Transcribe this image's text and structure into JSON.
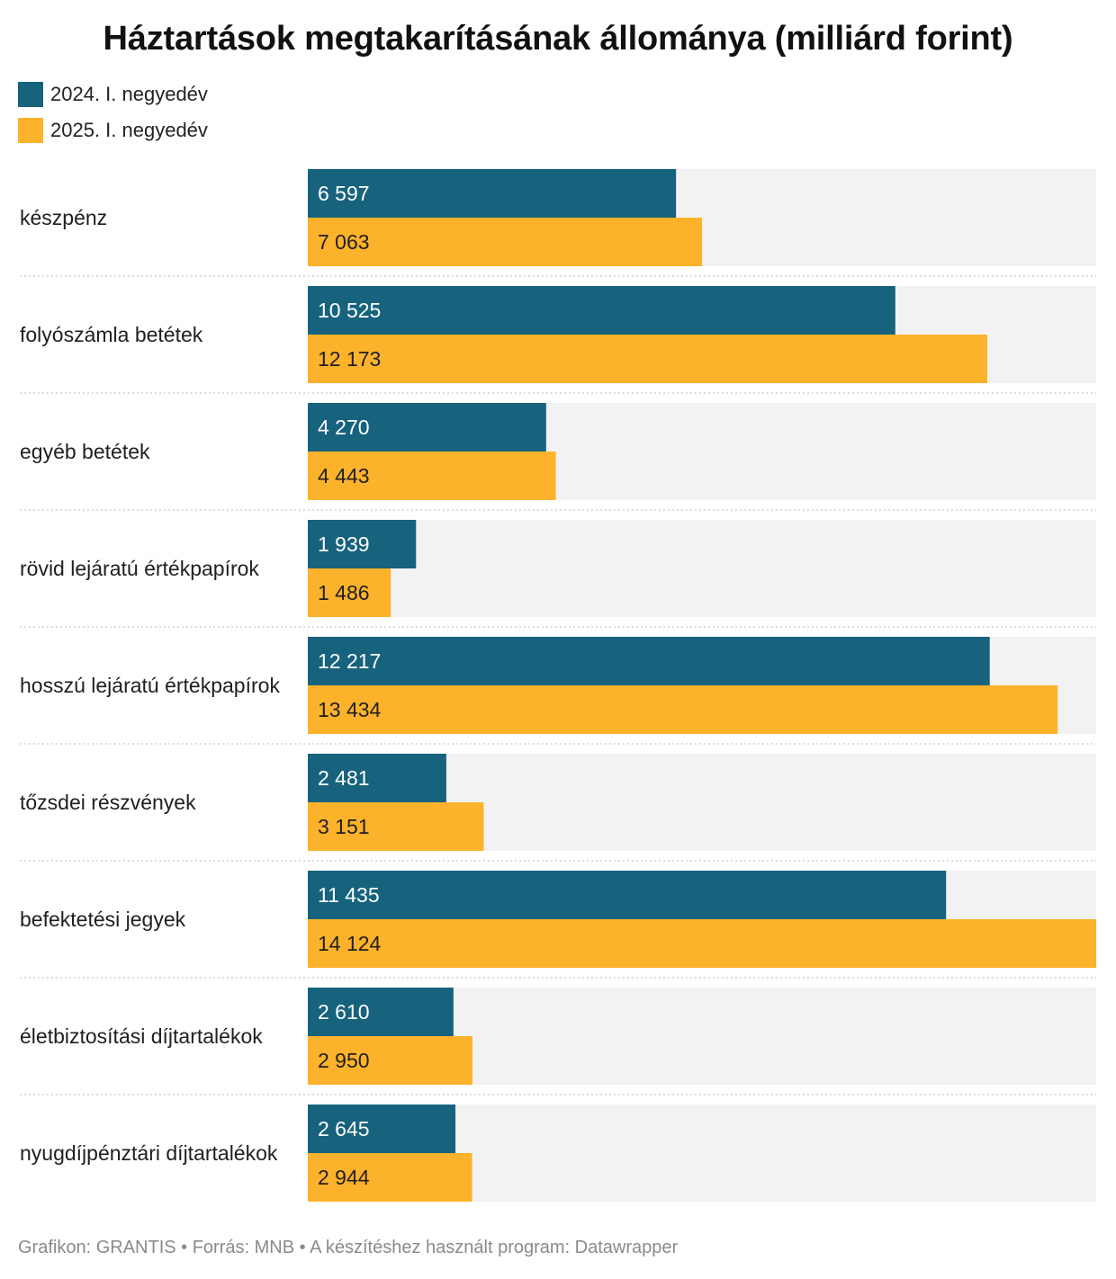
{
  "chart_data": {
    "type": "bar",
    "orientation": "horizontal",
    "title": "Háztartások megtakarításának állománya (milliárd forint)",
    "categories": [
      "készpénz",
      "folyószámla betétek",
      "egyéb betétek",
      "rövid lejáratú értékpapírok",
      "hosszú lejáratú értékpapírok",
      "tőzsdei részvények",
      "befektetési jegyek",
      "életbiztosítási díjtartalékok",
      "nyugdíjpénztári díjtartalékok"
    ],
    "series": [
      {
        "name": "2024. I. negyedév",
        "color": "#17627d",
        "label_color": "#ffffff",
        "values": [
          6597,
          10525,
          4270,
          1939,
          12217,
          2481,
          11435,
          2610,
          2645
        ],
        "labels": [
          "6 597",
          "10 525",
          "4 270",
          "1 939",
          "12 217",
          "2 481",
          "11 435",
          "2 610",
          "2 645"
        ]
      },
      {
        "name": "2025. I. negyedév",
        "color": "#fdb22b",
        "label_color": "#1f1f1f",
        "values": [
          7063,
          12173,
          4443,
          1486,
          13434,
          3151,
          14124,
          2950,
          2944
        ],
        "labels": [
          "7 063",
          "12 173",
          "4 443",
          "1 486",
          "13 434",
          "3 151",
          "14 124",
          "2 950",
          "2 944"
        ]
      }
    ],
    "xlim": [
      0,
      14124
    ],
    "background_track_color": "#f2f2f2",
    "legend_position": "top-left"
  },
  "footer": "Grafikon: GRANTIS • Forrás: MNB • A készítéshez használt program: Datawrapper"
}
